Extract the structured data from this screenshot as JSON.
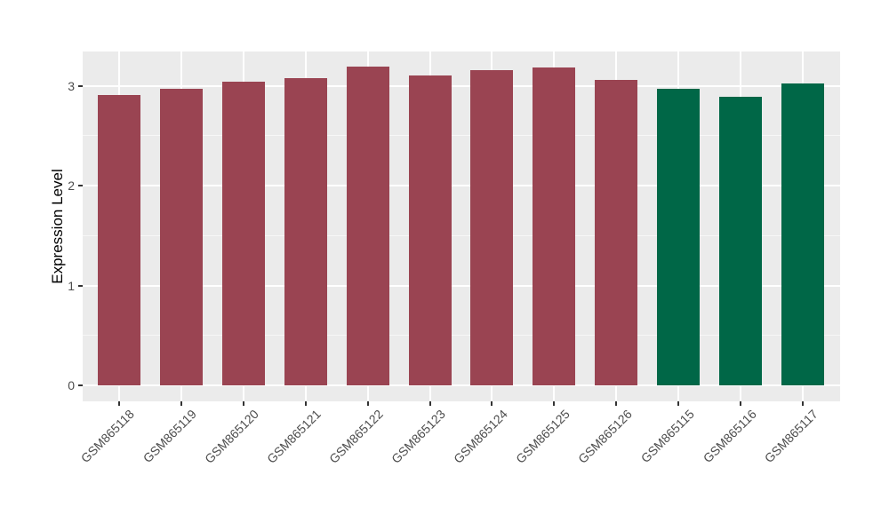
{
  "chart_data": {
    "type": "bar",
    "title": "",
    "xlabel": "",
    "ylabel": "Expression Level",
    "categories": [
      "GSM865118",
      "GSM865119",
      "GSM865120",
      "GSM865121",
      "GSM865122",
      "GSM865123",
      "GSM865124",
      "GSM865125",
      "GSM865126",
      "GSM865115",
      "GSM865116",
      "GSM865117"
    ],
    "values": [
      2.91,
      2.97,
      3.04,
      3.08,
      3.19,
      3.1,
      3.16,
      3.18,
      3.06,
      2.97,
      2.89,
      3.02
    ],
    "bar_groups": [
      "group1",
      "group1",
      "group1",
      "group1",
      "group1",
      "group1",
      "group1",
      "group1",
      "group1",
      "group2",
      "group2",
      "group2"
    ],
    "group_colors": {
      "group1": "#9A4452",
      "group2": "#006747"
    },
    "ylim": [
      0,
      3.35
    ],
    "yticks": [
      0,
      1,
      2,
      3
    ],
    "y_minor_ticks": [
      0.5,
      1.5,
      2.5
    ],
    "legend": "none",
    "grid": "on",
    "panel_background": "#EBEBEB",
    "grid_color": "#FFFFFF",
    "axis_text_color": "#4d4d4d",
    "tick_mark_color": "#333333"
  }
}
